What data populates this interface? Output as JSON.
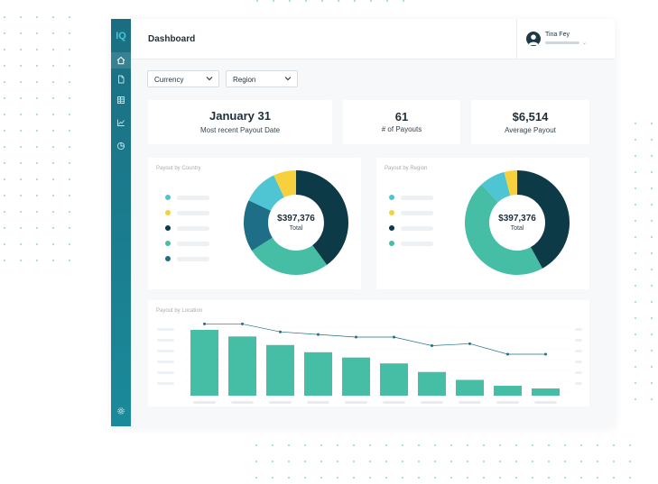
{
  "app": {
    "logo": "IQ"
  },
  "sidebar": {
    "items": [
      {
        "name": "home-icon",
        "active": true
      },
      {
        "name": "document-icon",
        "active": false
      },
      {
        "name": "table-icon",
        "active": false
      },
      {
        "name": "chart-icon",
        "active": false
      },
      {
        "name": "pie-icon",
        "active": false
      }
    ],
    "settings": "gear-icon"
  },
  "header": {
    "title": "Dashboard",
    "user_name": "Tina Fey"
  },
  "filters": {
    "currency_label": "Currency",
    "region_label": "Region"
  },
  "kpis": [
    {
      "value": "January 31",
      "label": "Most recent Payout Date"
    },
    {
      "value": "61",
      "label": "# of Payouts"
    },
    {
      "value": "$6,514",
      "label": "Average Payout"
    }
  ],
  "colors": {
    "navy": "#0c3a47",
    "teal": "#46bda5",
    "blue": "#1d6e86",
    "cyan": "#4fc4d2",
    "yellow": "#f7d13d"
  },
  "chart_data": [
    {
      "type": "pie",
      "title": "Payout by Country",
      "center_value": "$397,376",
      "center_label": "Total",
      "slices": [
        {
          "color": "#0c3a47",
          "value": 40
        },
        {
          "color": "#46bda5",
          "value": 26
        },
        {
          "color": "#1d6e86",
          "value": 16
        },
        {
          "color": "#4fc4d2",
          "value": 11
        },
        {
          "color": "#f7d13d",
          "value": 7
        }
      ],
      "legend_colors": [
        "#4fc4d2",
        "#f7d13d",
        "#0c3a47",
        "#46bda5",
        "#1d6e86"
      ]
    },
    {
      "type": "pie",
      "title": "Payout by Region",
      "center_value": "$397,376",
      "center_label": "Total",
      "slices": [
        {
          "color": "#0c3a47",
          "value": 42
        },
        {
          "color": "#46bda5",
          "value": 46
        },
        {
          "color": "#4fc4d2",
          "value": 8
        },
        {
          "color": "#f7d13d",
          "value": 4
        }
      ],
      "legend_colors": [
        "#4fc4d2",
        "#f7d13d",
        "#0c3a47",
        "#46bda5"
      ]
    },
    {
      "type": "bar",
      "title": "Payout by Location",
      "ylim": [
        0,
        100
      ],
      "values": [
        100,
        90,
        77,
        66,
        58,
        49,
        36,
        24,
        15,
        11
      ],
      "line_values": [
        109,
        109,
        97,
        93,
        89,
        89,
        76,
        79,
        63,
        63
      ]
    }
  ]
}
